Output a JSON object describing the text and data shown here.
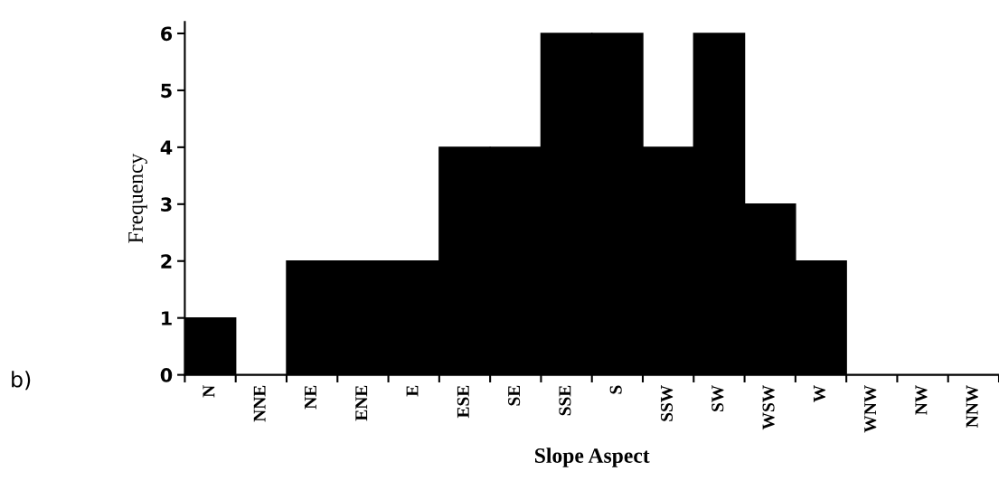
{
  "chart_data": {
    "type": "bar",
    "xlabel": "Slope Aspect",
    "ylabel": "Frequency",
    "categories": [
      "N",
      "NNE",
      "NE",
      "ENE",
      "E",
      "ESE",
      "SE",
      "SSE",
      "S",
      "SSW",
      "SW",
      "WSW",
      "W",
      "WNW",
      "NW",
      "NNW"
    ],
    "values": [
      1,
      0,
      2,
      2,
      2,
      4,
      4,
      6,
      6,
      4,
      6,
      3,
      2,
      0,
      0,
      0
    ],
    "color": "#000000",
    "ylim": [
      0,
      6.2
    ],
    "yticks": [
      0,
      1,
      2,
      3,
      4,
      5,
      6
    ],
    "grid": false,
    "legend": false,
    "annotations": [
      "b)"
    ]
  }
}
